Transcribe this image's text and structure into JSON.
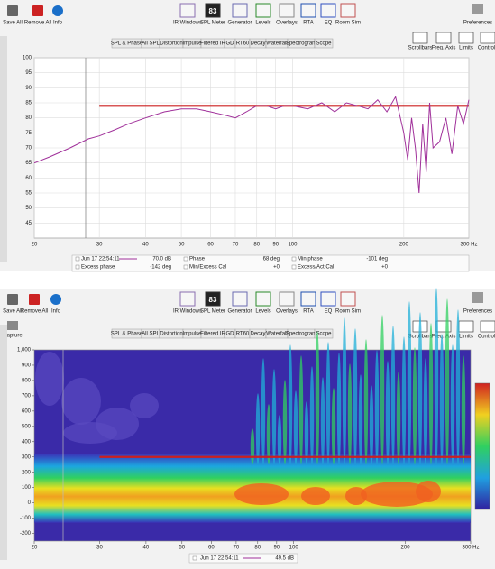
{
  "toolbar": {
    "left": [
      "Save All",
      "Remove All",
      "Info"
    ],
    "center": [
      "IR Windows",
      "SPL Meter",
      "Generator",
      "Levels",
      "Overlays",
      "RTA",
      "EQ",
      "Room Sim"
    ],
    "meter": "83",
    "right": "Preferences",
    "view": [
      "Scrollbars",
      "Freq. Axis",
      "Limits",
      "Controls"
    ],
    "capture": "Capture"
  },
  "tabs": [
    "SPL & Phase",
    "All SPL",
    "Distortion",
    "Impulse",
    "Filtered IR",
    "GD",
    "RT60",
    "Decay",
    "Waterfall",
    "Spectrogram",
    "Scope"
  ],
  "chart_data": [
    {
      "type": "line",
      "x": [
        20,
        22,
        25,
        28,
        30,
        33,
        36,
        40,
        45,
        50,
        55,
        60,
        65,
        70,
        75,
        80,
        85,
        90,
        95,
        100,
        110,
        120,
        130,
        140,
        150,
        160,
        170,
        180,
        190,
        200,
        205,
        210,
        215,
        220,
        225,
        230,
        235,
        240,
        250,
        260,
        270,
        280,
        290,
        300
      ],
      "series": [
        {
          "name": "Jun 17 22:54:11",
          "color": "#a0309a",
          "values": [
            65,
            67,
            70,
            73,
            74,
            76,
            78,
            80,
            82,
            83,
            83,
            82,
            81,
            80,
            82,
            84,
            84,
            83,
            84,
            84,
            83,
            85,
            82,
            85,
            84,
            83,
            86,
            82,
            87,
            75,
            66,
            80,
            70,
            55,
            78,
            62,
            85,
            70,
            72,
            80,
            68,
            84,
            78,
            86
          ]
        }
      ],
      "target": {
        "value": 84,
        "from": 30,
        "to": 300,
        "color": "#cc1f1f"
      },
      "xlim": [
        20,
        300
      ],
      "xticks": [
        20,
        30,
        40,
        50,
        60,
        70,
        80,
        90,
        100,
        200,
        {
          "value": 300,
          "label": "300 Hz"
        }
      ],
      "ylim": [
        40,
        100
      ],
      "yticks": [
        45,
        50,
        55,
        60,
        65,
        70,
        75,
        80,
        85,
        90,
        95,
        100
      ],
      "log_x": true,
      "grid": true,
      "legend": [
        [
          "Jun 17 22:54:11",
          "70.0 dB"
        ],
        [
          "Phase",
          "68 deg"
        ],
        [
          "Min phase",
          "-101 deg"
        ],
        [
          "Excess phase",
          "-142 deg"
        ],
        [
          "Min/Excess Cal",
          "+0"
        ],
        [
          "Excess/Act Cal",
          "+0"
        ]
      ]
    },
    {
      "type": "spectrogram",
      "xlim": [
        20,
        300
      ],
      "xticks": [
        20,
        30,
        40,
        50,
        60,
        70,
        80,
        90,
        100,
        200,
        {
          "value": 300,
          "label": "300 Hz"
        }
      ],
      "ylim": [
        -250,
        1000
      ],
      "yticks": [
        -200,
        -100,
        0,
        100,
        200,
        300,
        400,
        500,
        600,
        700,
        800,
        900,
        {
          "value": 1000,
          "label": "1,000"
        }
      ],
      "log_x": true,
      "target": {
        "value": 300,
        "from": 30,
        "to": 300,
        "color": "#cc1f1f"
      },
      "legend": [
        [
          "Jun 17 22:54:11",
          "49.5 dB"
        ]
      ]
    }
  ]
}
